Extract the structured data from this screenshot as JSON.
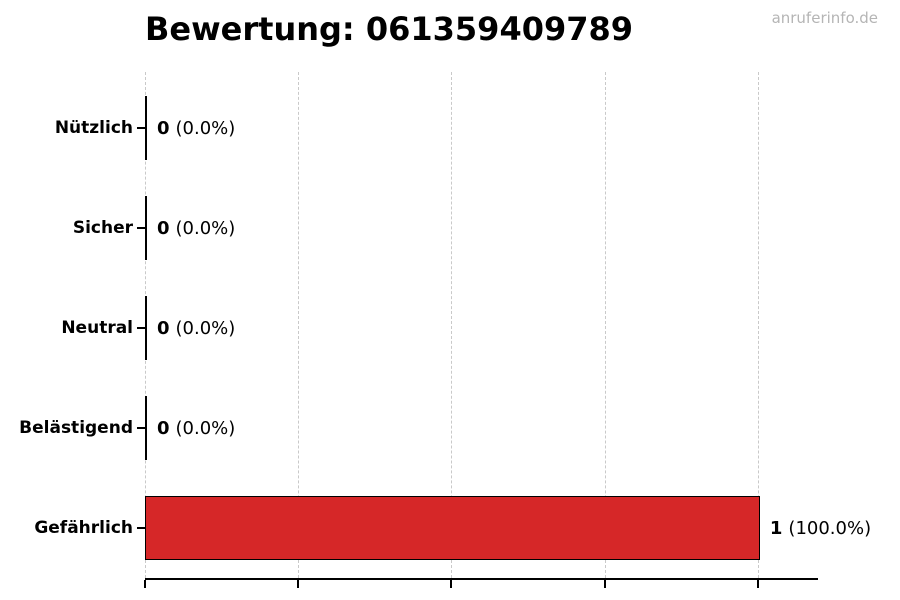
{
  "header": {
    "title": "Bewertung: 061359409789",
    "watermark": "anruferinfo.de"
  },
  "chart_data": {
    "type": "bar",
    "orientation": "horizontal",
    "title": "Bewertung: 061359409789",
    "categories": [
      "Nützlich",
      "Sicher",
      "Neutral",
      "Belästigend",
      "Gefährlich"
    ],
    "values": [
      0,
      0,
      0,
      0,
      1
    ],
    "value_labels": [
      "0 (0.0%)",
      "0 (0.0%)",
      "0 (0.0%)",
      "0 (0.0%)",
      "1 (100.0%)"
    ],
    "percentages": [
      0.0,
      0.0,
      0.0,
      0.0,
      100.0
    ],
    "x_ticks": [
      0,
      0.25,
      0.5,
      0.75,
      1.0
    ],
    "xlim": [
      0,
      1.098
    ],
    "grid": true,
    "legend": false,
    "bar_color": "#d62728",
    "bar_edge_color": "#000000",
    "gridline_color": "#c9c9c9",
    "watermark": "anruferinfo.de"
  },
  "rows": [
    {
      "label": "Nützlich",
      "count": "0",
      "pct": "(0.0%)"
    },
    {
      "label": "Sicher",
      "count": "0",
      "pct": "(0.0%)"
    },
    {
      "label": "Neutral",
      "count": "0",
      "pct": "(0.0%)"
    },
    {
      "label": "Belästigend",
      "count": "0",
      "pct": "(0.0%)"
    },
    {
      "label": "Gefährlich",
      "count": "1",
      "pct": "(100.0%)"
    }
  ]
}
